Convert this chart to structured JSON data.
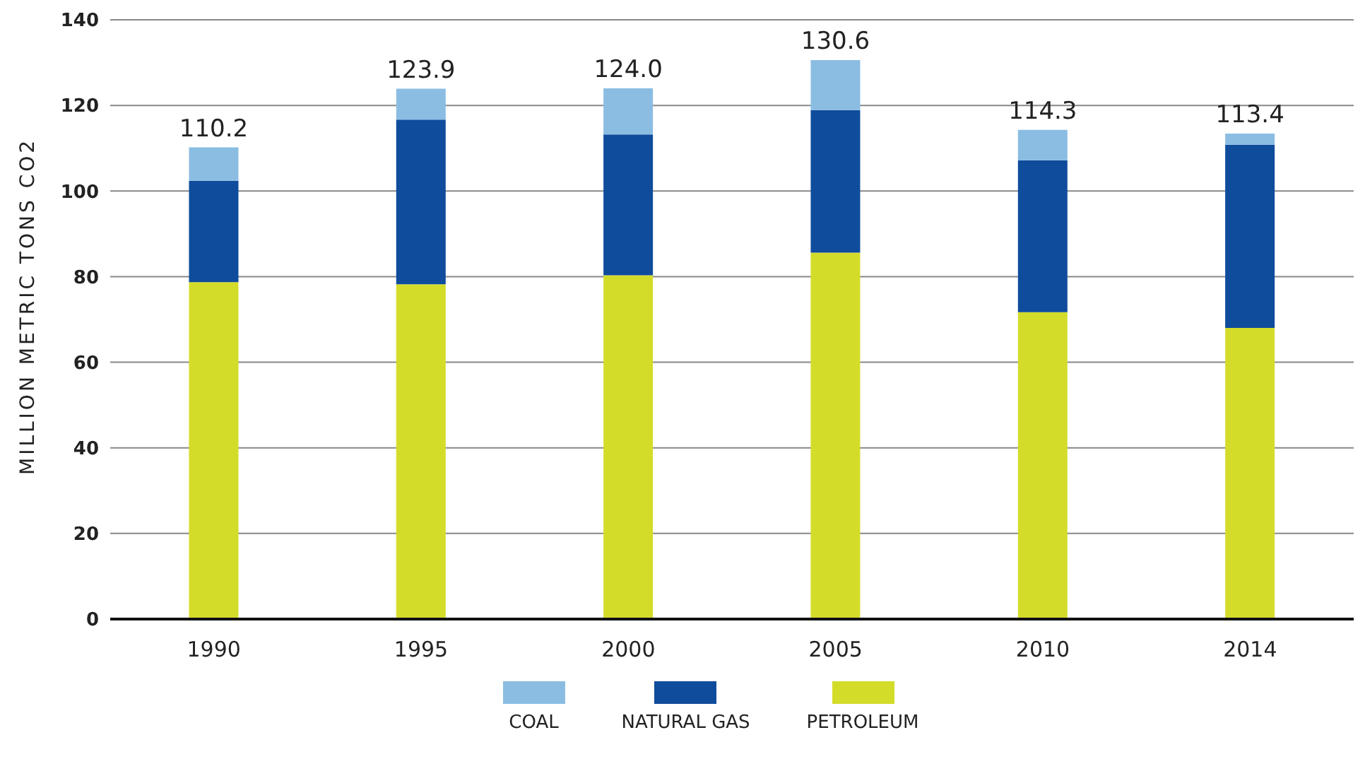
{
  "chart_data": {
    "type": "bar",
    "stacked": true,
    "ylabel": "MILLION METRIC TONS CO2",
    "categories": [
      "1990",
      "1995",
      "2000",
      "2005",
      "2010",
      "2014"
    ],
    "series": [
      {
        "name": "PETROLEUM",
        "color": "#d4dc2a",
        "values": [
          78.7,
          78.2,
          80.3,
          85.6,
          71.7,
          68.0
        ]
      },
      {
        "name": "NATURAL GAS",
        "color": "#0f4c9c",
        "values": [
          23.7,
          38.5,
          32.9,
          33.3,
          35.5,
          42.8
        ]
      },
      {
        "name": "COAL",
        "color": "#8bbde3",
        "values": [
          7.8,
          7.2,
          10.8,
          11.7,
          7.1,
          2.6
        ]
      }
    ],
    "totals": [
      "110.2",
      "123.9",
      "124.0",
      "130.6",
      "114.3",
      "113.4"
    ],
    "ylim": [
      0,
      140
    ],
    "yticks": [
      0,
      20,
      40,
      60,
      80,
      100,
      120,
      140
    ],
    "grid": "y",
    "legend": "bottom"
  }
}
